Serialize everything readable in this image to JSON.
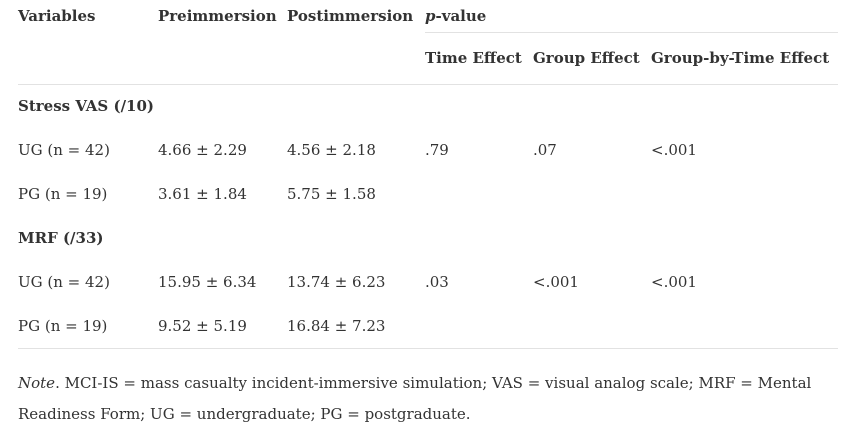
{
  "table": {
    "headers": {
      "variables": "Variables",
      "pre": "Preimmersion",
      "post": "Postimmersion",
      "p_italic": "p",
      "p_rest": "-value",
      "time_effect": "Time Effect",
      "group_effect": "Group Effect",
      "interaction": "Group-by-Time Effect"
    },
    "groups": [
      {
        "label": "Stress VAS (/10)",
        "rows": [
          {
            "name": "UG (n = 42)",
            "pre": "4.66 ± 2.29",
            "post": "4.56 ± 2.18",
            "time": ".79",
            "group": ".07",
            "interaction": "<.001"
          },
          {
            "name": "PG (n = 19)",
            "pre": "3.61 ± 1.84",
            "post": "5.75 ± 1.58",
            "time": "",
            "group": "",
            "interaction": ""
          }
        ]
      },
      {
        "label": "MRF (/33)",
        "rows": [
          {
            "name": "UG (n = 42)",
            "pre": "15.95 ± 6.34",
            "post": "13.74 ± 6.23",
            "time": ".03",
            "group": "<.001",
            "interaction": "<.001"
          },
          {
            "name": "PG (n = 19)",
            "pre": "9.52 ± 5.19",
            "post": "16.84 ± 7.23",
            "time": "",
            "group": "",
            "interaction": ""
          }
        ]
      }
    ]
  },
  "note": {
    "label": "Note",
    "text": ". MCI-IS = mass casualty incident-immersive simulation; VAS = visual analog scale; MRF = Mental Readiness Form; UG = undergraduate; PG = postgraduate."
  }
}
